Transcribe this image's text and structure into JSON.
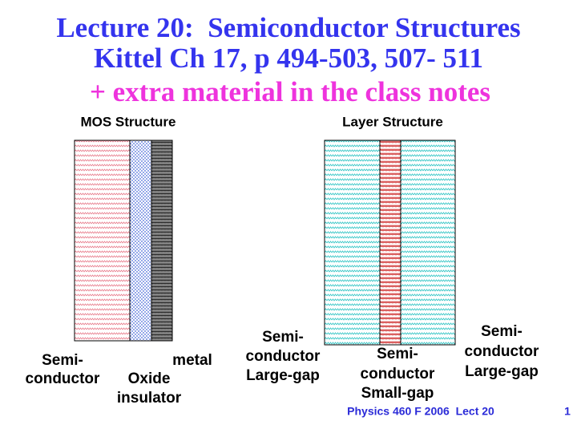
{
  "title_lines": [
    "Lecture 20:  Semiconductor Structures",
    "Kittel Ch 17, p 494-503, 507- 511",
    "+ extra material in the class notes"
  ],
  "diagrams": [
    {
      "heading": "MOS Structure",
      "labels": [
        {
          "lines": [
            "Semi-",
            "conductor"
          ]
        },
        {
          "lines": [
            "metal"
          ]
        },
        {
          "lines": [
            "Oxide",
            "insulator"
          ]
        }
      ]
    },
    {
      "heading": "Layer Structure",
      "labels": [
        {
          "lines": [
            "Semi-",
            "conductor",
            "Large-gap"
          ]
        },
        {
          "lines": [
            "Semi-",
            "conductor",
            "Small-gap"
          ]
        },
        {
          "lines": [
            "Semi-",
            "conductor",
            "Large-gap"
          ]
        }
      ]
    }
  ],
  "footer": {
    "text": "Physics 460 F 2006  Lect 20",
    "page": "1"
  }
}
